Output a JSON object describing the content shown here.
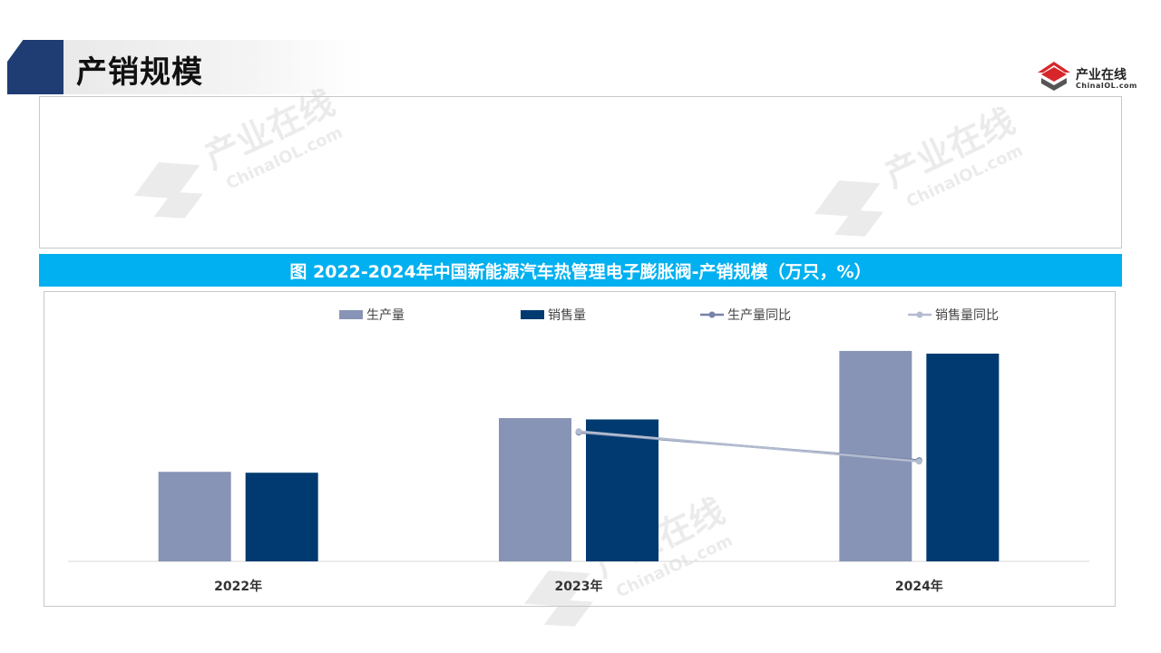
{
  "header": {
    "title": "产销规模"
  },
  "logo": {
    "name": "产业在线",
    "sub": "ChinaIOL.com"
  },
  "watermark": {
    "main": "产业在线",
    "sub": "ChinaIOL.com"
  },
  "chart_title": "图 2022-2024年中国新能源汽车热管理电子膨胀阀-产销规模（万只，%）",
  "colors": {
    "production": "#8794b5",
    "sales": "#003a70",
    "production_yoy": "#7584a8",
    "sales_yoy": "#b3bccf",
    "banner": "#00b0f0",
    "header_tab": "#1f3d73",
    "logo_red": "#d7262a"
  },
  "chart_data": {
    "type": "bar",
    "title": "图 2022-2024年中国新能源汽车热管理电子膨胀阀-产销规模（万只，%）",
    "categories": [
      "2022年",
      "2023年",
      "2024年"
    ],
    "series": [
      {
        "name": "生产量",
        "type": "bar",
        "axis": "primary",
        "values": [
          100,
          160,
          235
        ]
      },
      {
        "name": "销售量",
        "type": "bar",
        "axis": "primary",
        "values": [
          99,
          158.5,
          232
        ]
      },
      {
        "name": "生产量同比",
        "type": "line",
        "axis": "secondary",
        "values": [
          null,
          60,
          47
        ]
      },
      {
        "name": "销售量同比",
        "type": "line",
        "axis": "secondary",
        "values": [
          null,
          60.5,
          46.5
        ]
      }
    ],
    "ylim": [
      0,
      240
    ],
    "y2lim": [
      0,
      100
    ],
    "axes_visible": false,
    "grid": false,
    "legend": "top"
  }
}
